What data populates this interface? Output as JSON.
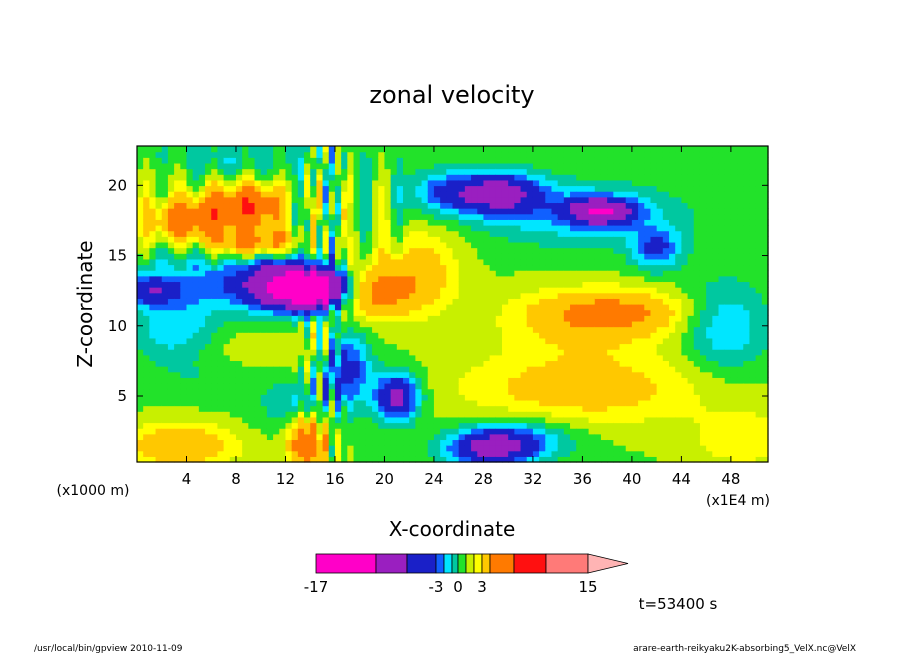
{
  "chart_data": {
    "type": "heatmap",
    "title": "zonal velocity",
    "xlabel": "X-coordinate",
    "ylabel": "Z-coordinate",
    "x_unit": "(x1E4 m)",
    "y_unit": "(x1000 m)",
    "xlim": [
      0,
      51
    ],
    "ylim": [
      0.3,
      22.8
    ],
    "x_ticks": [
      "4",
      "8",
      "12",
      "16",
      "20",
      "24",
      "28",
      "32",
      "36",
      "40",
      "44",
      "48"
    ],
    "x_tick_values": [
      4,
      8,
      12,
      16,
      20,
      24,
      28,
      32,
      36,
      40,
      44,
      48
    ],
    "y_ticks": [
      "5",
      "10",
      "15",
      "20"
    ],
    "y_tick_values": [
      5,
      10,
      15,
      20
    ],
    "colorbar": {
      "levels": [
        -17,
        -9,
        -5,
        -3,
        -2,
        -1,
        0,
        1,
        2,
        3,
        5,
        9,
        15,
        20
      ],
      "colors": [
        "#ff00c8",
        "#9a1fc0",
        "#1a20c8",
        "#1060ff",
        "#00e6ff",
        "#00c8a0",
        "#22e22a",
        "#c8f000",
        "#ffff00",
        "#ffc800",
        "#ff7a00",
        "#ff1010",
        "#ff7a78"
      ],
      "labels": [
        "-17",
        "-3",
        "0",
        "3",
        "15"
      ],
      "label_values": [
        -17,
        -3,
        0,
        3,
        15
      ]
    },
    "time_label": "t=53400 s",
    "field_blobs": [
      {
        "x": 14.5,
        "z": 12.7,
        "sx": 3.2,
        "sz": 1.5,
        "v": -14
      },
      {
        "x": 11.0,
        "z": 13.0,
        "sx": 3.5,
        "sz": 1.8,
        "v": -7
      },
      {
        "x": 4.0,
        "z": 13.0,
        "sx": 4.5,
        "sz": 2.2,
        "v": -3
      },
      {
        "x": 1.0,
        "z": 12.5,
        "sx": 2.0,
        "sz": 1.0,
        "v": -4
      },
      {
        "x": 18.5,
        "z": 12.5,
        "sx": 3.5,
        "sz": 1.8,
        "v": 6
      },
      {
        "x": 23.0,
        "z": 14.0,
        "sx": 3.0,
        "sz": 3.0,
        "v": 3
      },
      {
        "x": 21.0,
        "z": 5.0,
        "sx": 1.8,
        "sz": 1.7,
        "v": -7
      },
      {
        "x": 17.0,
        "z": 7.0,
        "sx": 1.8,
        "sz": 2.5,
        "v": -5
      },
      {
        "x": 13.0,
        "z": 4.5,
        "sx": 3.0,
        "sz": 2.0,
        "v": -2
      },
      {
        "x": 13.8,
        "z": 1.8,
        "sx": 1.5,
        "sz": 1.8,
        "v": 7
      },
      {
        "x": 3.5,
        "z": 1.5,
        "sx": 4.5,
        "sz": 1.5,
        "v": 4
      },
      {
        "x": 28.5,
        "z": 1.3,
        "sx": 3.5,
        "sz": 1.3,
        "v": -6
      },
      {
        "x": 31.0,
        "z": 2.0,
        "sx": 4.5,
        "sz": 1.5,
        "v": -3
      },
      {
        "x": 47.5,
        "z": 10.0,
        "sx": 3.5,
        "sz": 3.2,
        "v": -3
      },
      {
        "x": 36.0,
        "z": 5.5,
        "sx": 10.0,
        "sz": 2.5,
        "v": 3
      },
      {
        "x": 38.5,
        "z": 11.0,
        "sx": 6.0,
        "sz": 1.5,
        "v": 4
      },
      {
        "x": 36.0,
        "z": 10.0,
        "sx": 7.0,
        "sz": 2.5,
        "v": 2
      },
      {
        "x": 29.0,
        "z": 19.5,
        "sx": 3.5,
        "sz": 1.5,
        "v": -7
      },
      {
        "x": 36.0,
        "z": 18.0,
        "sx": 8.0,
        "sz": 2.2,
        "v": -3
      },
      {
        "x": 37.5,
        "z": 18.2,
        "sx": 2.5,
        "sz": 0.9,
        "v": -8
      },
      {
        "x": 42.0,
        "z": 15.5,
        "sx": 2.0,
        "sz": 1.5,
        "v": -4
      },
      {
        "x": 24.5,
        "z": 19.5,
        "sx": 2.5,
        "sz": 1.5,
        "v": -3
      },
      {
        "x": 4.0,
        "z": 17.5,
        "sx": 3.0,
        "sz": 1.5,
        "v": 6
      },
      {
        "x": 7.5,
        "z": 18.5,
        "sx": 2.5,
        "sz": 1.5,
        "v": 5
      },
      {
        "x": 10.0,
        "z": 18.5,
        "sx": 2.0,
        "sz": 1.5,
        "v": 5
      },
      {
        "x": 8.0,
        "z": 16.0,
        "sx": 2.0,
        "sz": 1.0,
        "v": 4
      },
      {
        "x": 11.0,
        "z": 16.0,
        "sx": 2.0,
        "sz": 1.0,
        "v": 4
      },
      {
        "x": 6.0,
        "z": 22.0,
        "sx": 12.0,
        "sz": 1.5,
        "v": -1.5
      },
      {
        "x": 2.0,
        "z": 21.5,
        "sx": 2.5,
        "sz": 1.5,
        "v": 1
      },
      {
        "x": 10.0,
        "z": 8.0,
        "sx": 6.0,
        "sz": 1.8,
        "v": 1
      },
      {
        "x": 6.0,
        "z": 6.5,
        "sx": 5.0,
        "sz": 1.5,
        "v": -1
      },
      {
        "x": 3.0,
        "z": 9.5,
        "sx": 3.5,
        "sz": 2.0,
        "v": -2.5
      },
      {
        "x": 49.0,
        "z": 2.0,
        "sx": 4.0,
        "sz": 2.0,
        "v": 2
      }
    ]
  },
  "footer": {
    "left": "/usr/local/bin/gpview  2010-11-09",
    "right": "arare-earth-reikyaku2K-absorbing5_VelX.nc@VelX"
  }
}
